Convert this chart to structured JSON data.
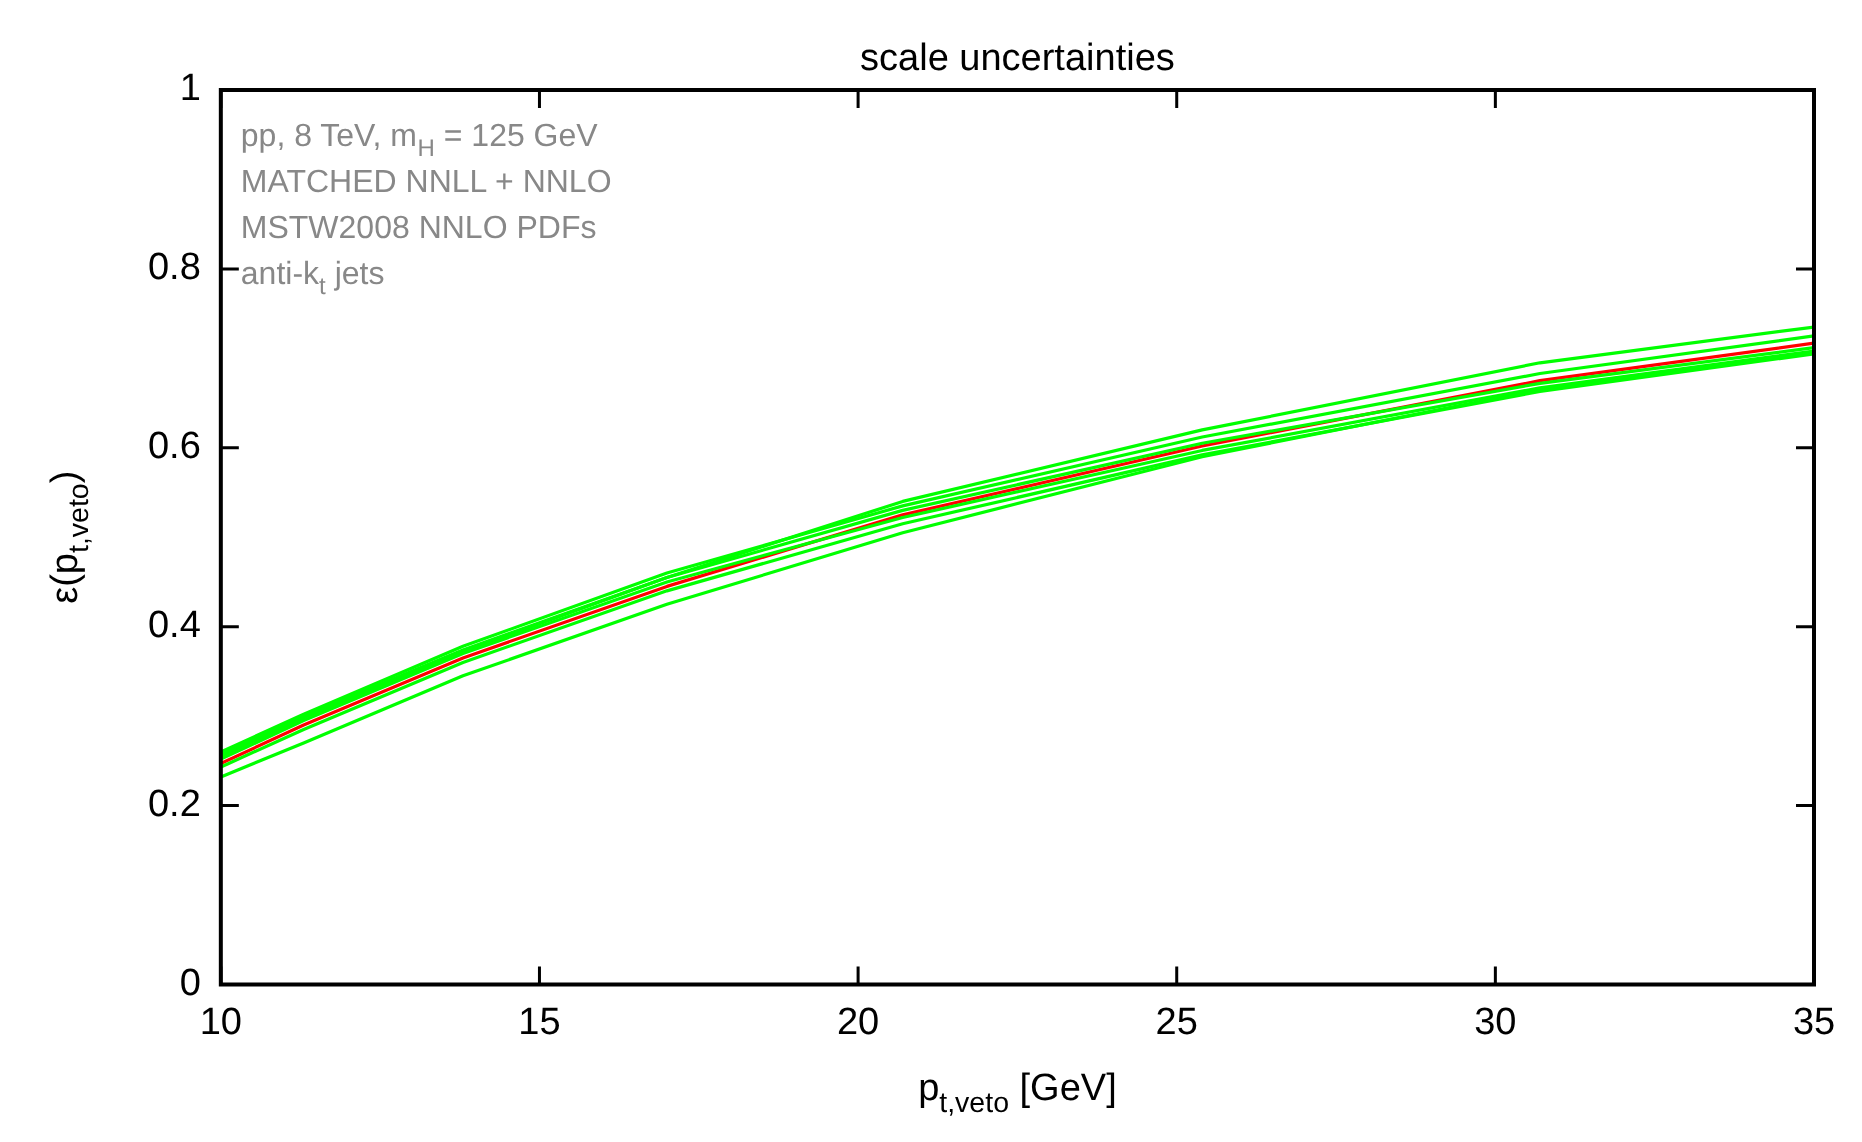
{
  "chart_data": {
    "type": "line",
    "title": "scale uncertainties",
    "xlabel": "p$_{t,veto}$ [GeV]",
    "ylabel": "ε(p$_{t,veto}$)",
    "annotations": [
      "pp, 8 TeV, m$_{H}$ = 125 GeV",
      "MATCHED NNLL + NNLO",
      "MSTW2008 NNLO PDFs",
      "anti-k$_{t}$ jets"
    ],
    "x": [
      10,
      11.3,
      13.8,
      17,
      20.7,
      25.4,
      30.7,
      35
    ],
    "series": [
      {
        "color": "#00ff00",
        "values": [
          0.255,
          0.298,
          0.372,
          0.455,
          0.54,
          0.62,
          0.695,
          0.735
        ]
      },
      {
        "color": "#00ff00",
        "values": [
          0.26,
          0.302,
          0.378,
          0.46,
          0.535,
          0.612,
          0.683,
          0.725
        ]
      },
      {
        "color": "#00ff00",
        "values": [
          0.257,
          0.3,
          0.374,
          0.455,
          0.53,
          0.605,
          0.672,
          0.712
        ]
      },
      {
        "color": "#00ff00",
        "values": [
          0.252,
          0.295,
          0.37,
          0.45,
          0.522,
          0.597,
          0.667,
          0.708
        ]
      },
      {
        "color": "#00ff00",
        "values": [
          0.243,
          0.285,
          0.36,
          0.44,
          0.515,
          0.592,
          0.663,
          0.705
        ]
      },
      {
        "color": "#00ff00",
        "values": [
          0.232,
          0.27,
          0.345,
          0.425,
          0.505,
          0.59,
          0.665,
          0.706
        ]
      },
      {
        "color": "#ff0000",
        "values": [
          0.247,
          0.29,
          0.365,
          0.445,
          0.525,
          0.602,
          0.675,
          0.717
        ]
      }
    ],
    "xlim": [
      10,
      35
    ],
    "xticks": [
      10,
      15,
      20,
      25,
      30,
      35
    ],
    "ylim": [
      0,
      1
    ],
    "yticks": [
      0,
      0.2,
      0.4,
      0.6,
      0.8,
      1
    ],
    "grid": false,
    "legend": false,
    "marker": "none",
    "line_style": "solid"
  }
}
